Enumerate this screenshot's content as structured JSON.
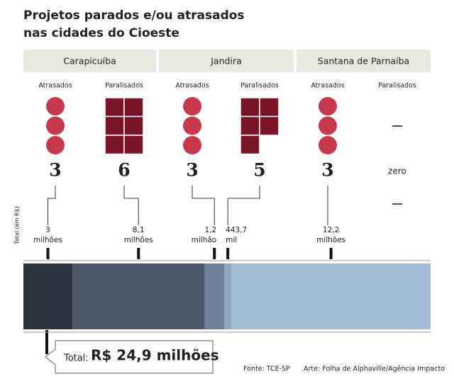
{
  "title": [
    "Projetos parados e/ou atrasados",
    "nas cidades do Cioeste"
  ],
  "axis_label": "Total (em R$)",
  "cities": [
    {
      "name": "Carapicuíba",
      "groups": [
        {
          "label": "Atrasados",
          "count": 3
        },
        {
          "label": "Paralisados",
          "count": 6
        }
      ]
    },
    {
      "name": "Jandira",
      "groups": [
        {
          "label": "Atrasados",
          "count": 3
        },
        {
          "label": "Paralisados",
          "count": 5
        }
      ]
    },
    {
      "name": "Santana de Parnaíba",
      "groups": [
        {
          "label": "Atrasados",
          "count": 3
        },
        {
          "label": "Paralisados",
          "count": 0,
          "value_label": "zero"
        }
      ]
    }
  ],
  "chart_data": {
    "type": "stacked-bar",
    "segments": [
      {
        "value": 3000000,
        "label_lines": [
          "3",
          "milhões"
        ],
        "color": "#2c333e"
      },
      {
        "value": 8100000,
        "label_lines": [
          "8,1",
          "milhões"
        ],
        "color": "#4b5767"
      },
      {
        "value": 1200000,
        "label_lines": [
          "1,2",
          "milhão"
        ],
        "color": "#6f8198"
      },
      {
        "value": 443700,
        "label_lines": [
          "443,7",
          "mil"
        ],
        "color": "#8fa6c1"
      },
      {
        "value": 12200000,
        "label_lines": [
          "12,2",
          "milhões"
        ],
        "color": "#a2bbd8"
      }
    ]
  },
  "total": {
    "label": "Total:",
    "value": 24900000,
    "value_label": "R$ 24,9 milhões"
  },
  "footer": {
    "source": "Fonte: TCE-SP",
    "credit": "Arte: Folha de Alphaville/Agência Impacto"
  }
}
